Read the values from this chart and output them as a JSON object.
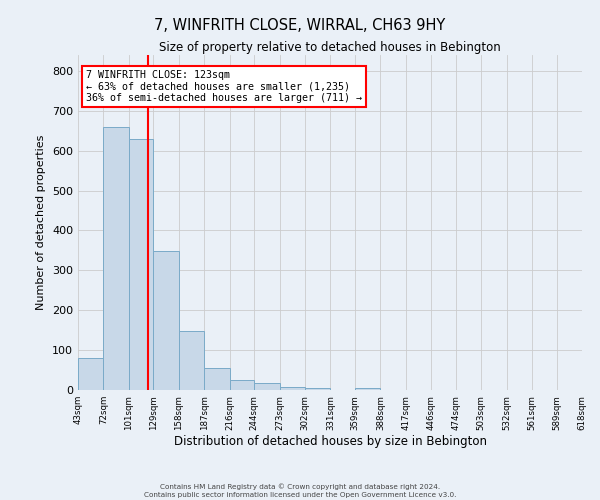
{
  "title": "7, WINFRITH CLOSE, WIRRAL, CH63 9HY",
  "subtitle": "Size of property relative to detached houses in Bebington",
  "xlabel": "Distribution of detached houses by size in Bebington",
  "ylabel": "Number of detached properties",
  "bar_edges": [
    43,
    72,
    101,
    129,
    158,
    187,
    216,
    244,
    273,
    302,
    331,
    359,
    388,
    417,
    446,
    474,
    503,
    532,
    561,
    589,
    618
  ],
  "bar_heights": [
    80,
    660,
    630,
    348,
    148,
    55,
    25,
    18,
    8,
    5,
    0,
    5,
    0,
    0,
    0,
    0,
    0,
    0,
    0,
    0
  ],
  "bar_color": "#c8d8e8",
  "bar_edgecolor": "#7aaac8",
  "property_line_x": 123,
  "property_line_color": "red",
  "annotation_title": "7 WINFRITH CLOSE: 123sqm",
  "annotation_line1": "← 63% of detached houses are smaller (1,235)",
  "annotation_line2": "36% of semi-detached houses are larger (711) →",
  "annotation_box_color": "white",
  "annotation_box_edgecolor": "red",
  "ylim": [
    0,
    840
  ],
  "yticks": [
    0,
    100,
    200,
    300,
    400,
    500,
    600,
    700,
    800
  ],
  "tick_labels": [
    "43sqm",
    "72sqm",
    "101sqm",
    "129sqm",
    "158sqm",
    "187sqm",
    "216sqm",
    "244sqm",
    "273sqm",
    "302sqm",
    "331sqm",
    "359sqm",
    "388sqm",
    "417sqm",
    "446sqm",
    "474sqm",
    "503sqm",
    "532sqm",
    "561sqm",
    "589sqm",
    "618sqm"
  ],
  "grid_color": "#cccccc",
  "bg_color": "#eaf0f7",
  "footer_line1": "Contains HM Land Registry data © Crown copyright and database right 2024.",
  "footer_line2": "Contains public sector information licensed under the Open Government Licence v3.0."
}
